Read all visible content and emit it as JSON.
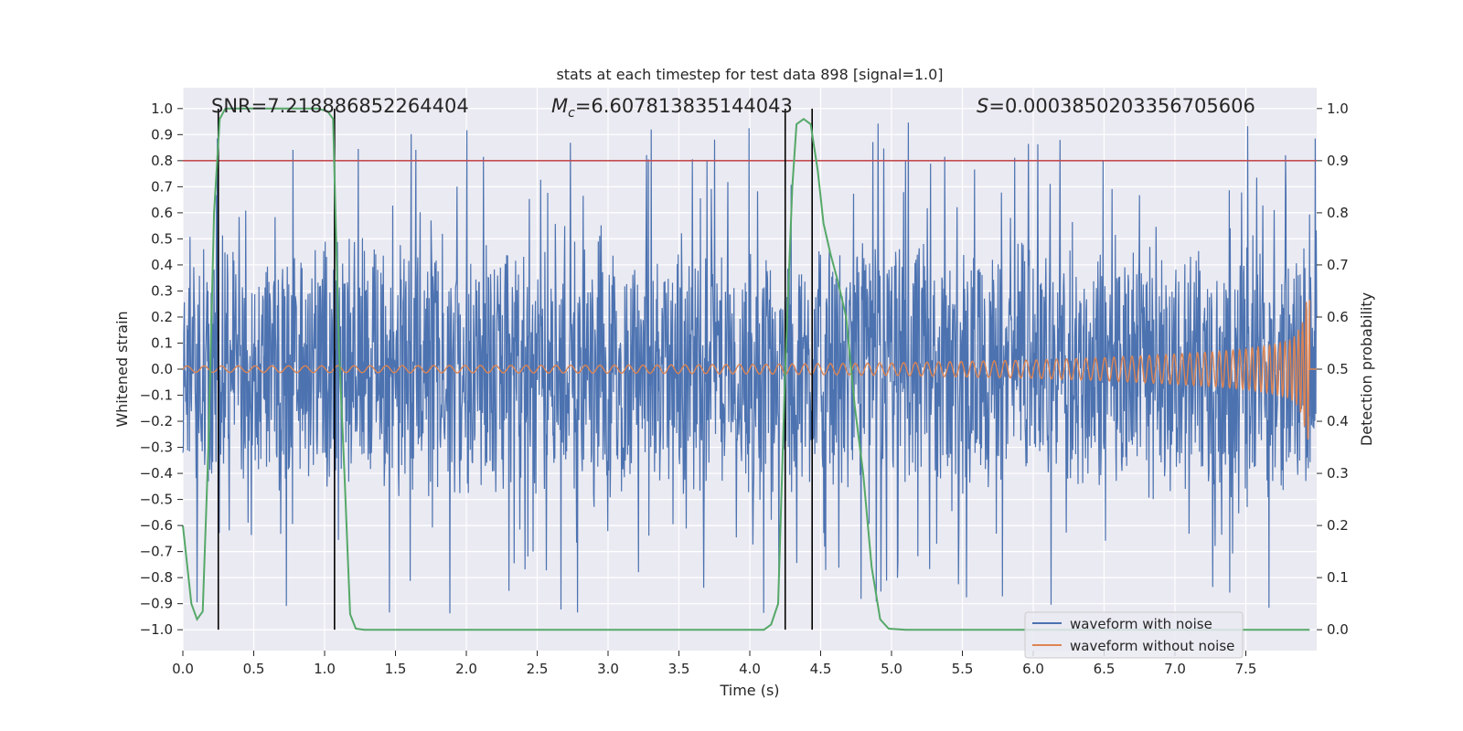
{
  "chart_data": {
    "type": "line",
    "title": "stats at each timestep for test data 898 [signal=1.0]",
    "xlabel": "Time (s)",
    "ylabel_left": "Whitened strain",
    "ylabel_right": "Detection probability",
    "xlim": [
      0.0,
      8.0
    ],
    "ylim_left": [
      -1.08,
      1.08
    ],
    "ylim_right": [
      -0.04,
      1.04
    ],
    "x_ticks": [
      "0.0",
      "0.5",
      "1.0",
      "1.5",
      "2.0",
      "2.5",
      "3.0",
      "3.5",
      "4.0",
      "4.5",
      "5.0",
      "5.5",
      "6.0",
      "6.5",
      "7.0",
      "7.5"
    ],
    "left_ticks": [
      "1.0",
      "0.9",
      "0.8",
      "0.7",
      "0.6",
      "0.5",
      "0.4",
      "0.3",
      "0.2",
      "0.1",
      "0.0",
      "−0.1",
      "−0.2",
      "−0.3",
      "−0.4",
      "−0.5",
      "−0.6",
      "−0.7",
      "−0.8",
      "−0.9",
      "−1.0"
    ],
    "right_ticks": [
      "1.0",
      "0.9",
      "0.8",
      "0.7",
      "0.6",
      "0.5",
      "0.4",
      "0.3",
      "0.2",
      "0.1",
      "0.0"
    ],
    "annotations": {
      "snr": "SNR=7.218886852264404",
      "mc_symbol": "M",
      "mc_sub": "c",
      "mc_value": "=6.607813835144043",
      "s_symbol": "S",
      "s_value": "=0.0003850203356705606"
    },
    "threshold": {
      "value": 0.9,
      "axis": "right",
      "color": "#c44e52"
    },
    "vertical_lines": [
      0.25,
      1.07,
      4.25,
      4.44
    ],
    "legend": {
      "placement": "lower-right",
      "entries": [
        {
          "label": "waveform with noise",
          "color": "#4c72b0"
        },
        {
          "label": "waveform without noise",
          "color": "#dd8452"
        }
      ]
    },
    "series": [
      {
        "name": "waveform with noise",
        "axis": "left",
        "color": "#4c72b0",
        "description": "noisy whitened strain, amplitude mostly within ±0.5 with spikes to ±0.97",
        "x_range": [
          0.0,
          8.0
        ],
        "typical_amplitude": 0.45,
        "max_abs": 0.97
      },
      {
        "name": "waveform without noise",
        "axis": "left",
        "color": "#dd8452",
        "description": "chirp signal with growing amplitude",
        "x_range": [
          0.0,
          7.95
        ],
        "envelope": {
          "x": [
            0.0,
            3.0,
            4.0,
            5.0,
            6.0,
            6.5,
            7.0,
            7.3,
            7.5,
            7.7,
            7.8,
            7.85,
            7.9,
            7.93
          ],
          "amp": [
            0.012,
            0.015,
            0.018,
            0.024,
            0.035,
            0.044,
            0.058,
            0.068,
            0.078,
            0.095,
            0.11,
            0.13,
            0.18,
            0.27
          ]
        }
      },
      {
        "name": "detection probability",
        "axis": "right",
        "color": "#55a868",
        "x": [
          0.0,
          0.06,
          0.1,
          0.14,
          0.18,
          0.22,
          0.26,
          0.3,
          0.32,
          0.36,
          0.6,
          0.8,
          0.95,
          1.02,
          1.06,
          1.1,
          1.14,
          1.18,
          1.22,
          1.28,
          1.4,
          2.0,
          3.0,
          4.0,
          4.1,
          4.15,
          4.2,
          4.25,
          4.3,
          4.33,
          4.38,
          4.43,
          4.48,
          4.52,
          4.57,
          4.62,
          4.68,
          4.74,
          4.8,
          4.86,
          4.92,
          4.98,
          5.1,
          6.0,
          7.0,
          7.95
        ],
        "y": [
          0.2,
          0.05,
          0.02,
          0.035,
          0.35,
          0.8,
          0.98,
          1.0,
          1.0,
          1.0,
          1.0,
          1.0,
          1.0,
          0.995,
          0.98,
          0.55,
          0.3,
          0.03,
          0.002,
          0.0,
          0.0,
          0.0,
          0.0,
          0.0,
          0.0,
          0.01,
          0.05,
          0.5,
          0.85,
          0.97,
          0.98,
          0.97,
          0.88,
          0.78,
          0.72,
          0.67,
          0.6,
          0.43,
          0.3,
          0.12,
          0.02,
          0.002,
          0.0,
          0.0,
          0.0,
          0.0
        ]
      }
    ]
  }
}
